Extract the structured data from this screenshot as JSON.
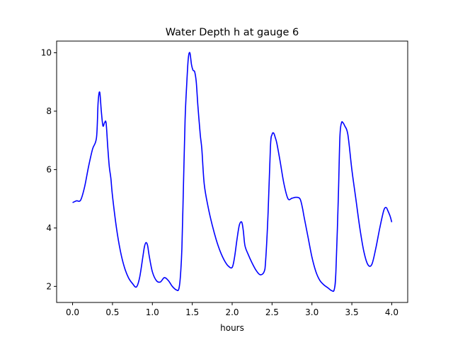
{
  "chart_data": {
    "type": "line",
    "title": "Water Depth h at gauge 6",
    "xlabel": "hours",
    "ylabel": "",
    "xlim": [
      -0.2,
      4.2
    ],
    "ylim": [
      1.45,
      10.4
    ],
    "xticks": [
      0.0,
      0.5,
      1.0,
      1.5,
      2.0,
      2.5,
      3.0,
      3.5,
      4.0
    ],
    "xtick_labels": [
      "0.0",
      "0.5",
      "1.0",
      "1.5",
      "2.0",
      "2.5",
      "3.0",
      "3.5",
      "4.0"
    ],
    "yticks": [
      2,
      4,
      6,
      8,
      10
    ],
    "ytick_labels": [
      "2",
      "4",
      "6",
      "8",
      "10"
    ],
    "grid": false,
    "series": [
      {
        "color": "#0000ff",
        "x": [
          0.0,
          0.05,
          0.1,
          0.15,
          0.2,
          0.25,
          0.3,
          0.32,
          0.34,
          0.36,
          0.38,
          0.4,
          0.42,
          0.44,
          0.46,
          0.48,
          0.5,
          0.55,
          0.6,
          0.65,
          0.7,
          0.75,
          0.8,
          0.84,
          0.88,
          0.9,
          0.92,
          0.94,
          0.96,
          1.0,
          1.05,
          1.1,
          1.15,
          1.2,
          1.25,
          1.3,
          1.33,
          1.35,
          1.37,
          1.39,
          1.41,
          1.43,
          1.45,
          1.47,
          1.49,
          1.51,
          1.53,
          1.55,
          1.57,
          1.6,
          1.62,
          1.65,
          1.7,
          1.75,
          1.8,
          1.85,
          1.9,
          1.95,
          2.0,
          2.03,
          2.06,
          2.09,
          2.12,
          2.14,
          2.16,
          2.2,
          2.25,
          2.3,
          2.35,
          2.4,
          2.42,
          2.45,
          2.48,
          2.5,
          2.52,
          2.54,
          2.56,
          2.6,
          2.65,
          2.7,
          2.75,
          2.8,
          2.85,
          2.88,
          2.9,
          2.95,
          3.0,
          3.05,
          3.1,
          3.15,
          3.2,
          3.25,
          3.28,
          3.3,
          3.33,
          3.35,
          3.37,
          3.39,
          3.41,
          3.45,
          3.5,
          3.55,
          3.6,
          3.65,
          3.7,
          3.75,
          3.8,
          3.85,
          3.9,
          3.93,
          3.95,
          3.98,
          4.0
        ],
        "y": [
          4.87,
          4.93,
          4.95,
          5.4,
          6.1,
          6.7,
          7.1,
          8.3,
          8.65,
          8.0,
          7.5,
          7.6,
          7.6,
          6.8,
          6.1,
          5.7,
          5.1,
          4.0,
          3.2,
          2.65,
          2.3,
          2.1,
          1.98,
          2.3,
          3.0,
          3.35,
          3.5,
          3.4,
          3.05,
          2.5,
          2.2,
          2.15,
          2.3,
          2.2,
          2.0,
          1.88,
          1.9,
          2.3,
          3.3,
          5.5,
          7.7,
          8.9,
          9.8,
          10.0,
          9.6,
          9.4,
          9.35,
          9.0,
          8.2,
          7.2,
          6.7,
          5.5,
          4.7,
          4.1,
          3.6,
          3.2,
          2.9,
          2.7,
          2.65,
          3.0,
          3.6,
          4.1,
          4.2,
          3.9,
          3.4,
          3.1,
          2.8,
          2.55,
          2.4,
          2.5,
          2.9,
          4.5,
          6.8,
          7.2,
          7.25,
          7.1,
          6.9,
          6.3,
          5.5,
          5.0,
          5.02,
          5.05,
          5.0,
          4.7,
          4.4,
          3.7,
          3.0,
          2.5,
          2.2,
          2.05,
          1.95,
          1.85,
          1.9,
          2.5,
          5.0,
          7.1,
          7.6,
          7.6,
          7.5,
          7.2,
          6.0,
          5.0,
          4.0,
          3.2,
          2.75,
          2.75,
          3.3,
          4.0,
          4.6,
          4.7,
          4.6,
          4.4,
          4.2
        ]
      }
    ]
  }
}
